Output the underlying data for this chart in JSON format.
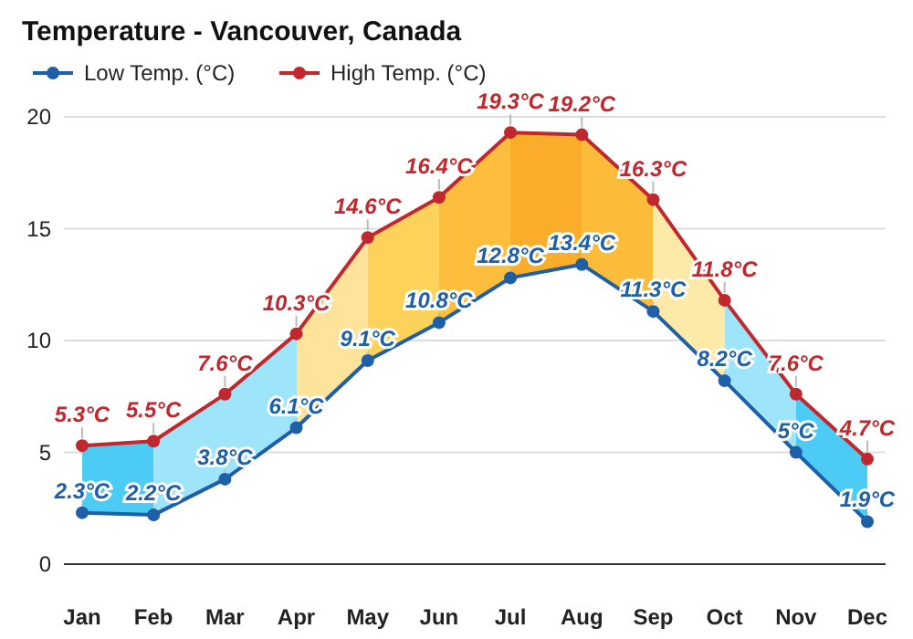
{
  "chart_data": {
    "type": "line",
    "title": "Temperature - Vancouver, Canada",
    "categories": [
      "Jan",
      "Feb",
      "Mar",
      "Apr",
      "May",
      "Jun",
      "Jul",
      "Aug",
      "Sep",
      "Oct",
      "Nov",
      "Dec"
    ],
    "series": [
      {
        "name": "Low Temp. (°C)",
        "color": "#1e5fa8",
        "values": [
          2.3,
          2.2,
          3.8,
          6.1,
          9.1,
          10.8,
          12.8,
          13.4,
          11.3,
          8.2,
          5,
          1.9
        ],
        "value_labels": [
          "2.3°C",
          "2.2°C",
          "3.8°C",
          "6.1°C",
          "9.1°C",
          "10.8°C",
          "12.8°C",
          "13.4°C",
          "11.3°C",
          "8.2°C",
          "5°C",
          "1.9°C"
        ]
      },
      {
        "name": "High Temp. (°C)",
        "color": "#c0282d",
        "values": [
          5.3,
          5.5,
          7.6,
          10.3,
          14.6,
          16.4,
          19.3,
          19.2,
          16.3,
          11.8,
          7.6,
          4.7
        ],
        "value_labels": [
          "5.3°C",
          "5.5°C",
          "7.6°C",
          "10.3°C",
          "14.6°C",
          "16.4°C",
          "19.3°C",
          "19.2°C",
          "16.3°C",
          "11.8°C",
          "7.6°C",
          "4.7°C"
        ],
        "lower": [
          2.3,
          2.2,
          3.8,
          6.1,
          9.1,
          10.8,
          12.8,
          13.4,
          11.3,
          8.2,
          5,
          1.9
        ],
        "upper": [
          5.3,
          5.5,
          7.6,
          10.3,
          14.6,
          16.4,
          19.3,
          19.2,
          16.3,
          11.8,
          7.6,
          4.7
        ]
      }
    ],
    "colors": [
      "#4ccbf5",
      "#9ee4fb",
      "#9ee4fb",
      "#fde49a",
      "#fdd25a",
      "#fcbe3c",
      "#f9ad2a",
      "#fbbc3a",
      "#fde9a8",
      "#9ee4fb",
      "#4ccbf5"
    ],
    "ylim": [
      0,
      20
    ],
    "yticks": [
      0,
      5,
      10,
      15,
      20
    ],
    "grid": "y",
    "legend": "top left",
    "marker": "circle",
    "line_style": "solid"
  }
}
